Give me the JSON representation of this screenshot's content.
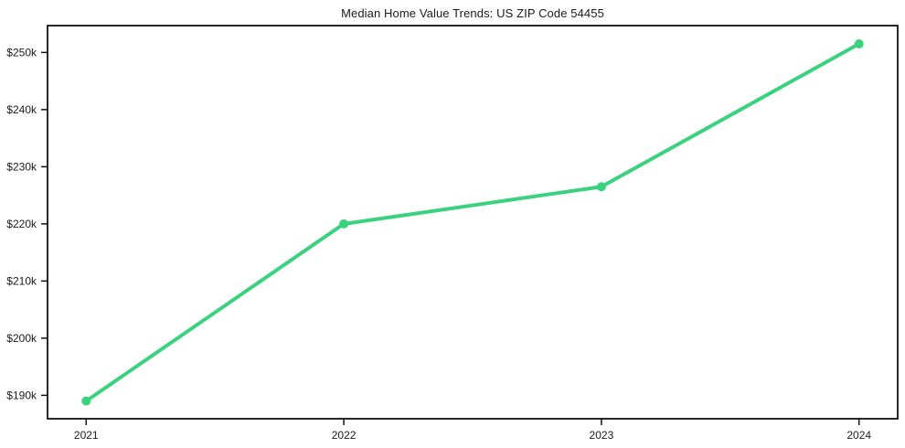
{
  "chart_data": {
    "type": "line",
    "title": "Median Home Value Trends: US ZIP Code 54455",
    "categories": [
      "2021",
      "2022",
      "2023",
      "2024"
    ],
    "series": [
      {
        "values": [
          189000,
          220000,
          226500,
          251500
        ]
      }
    ],
    "y_ticks": [
      {
        "value": 190000,
        "label": "$190k"
      },
      {
        "value": 200000,
        "label": "$200k"
      },
      {
        "value": 210000,
        "label": "$210k"
      },
      {
        "value": 220000,
        "label": "$220k"
      },
      {
        "value": 230000,
        "label": "$230k"
      },
      {
        "value": 240000,
        "label": "$240k"
      },
      {
        "value": 250000,
        "label": "$250k"
      }
    ],
    "ylim": [
      185900,
      254700
    ],
    "xlabel": "",
    "ylabel": "",
    "grid": false,
    "legend": "none",
    "line_color": "#3bd27f",
    "marker": "circle",
    "axis_color": "#111111",
    "text_color": "#1a1a1a"
  }
}
